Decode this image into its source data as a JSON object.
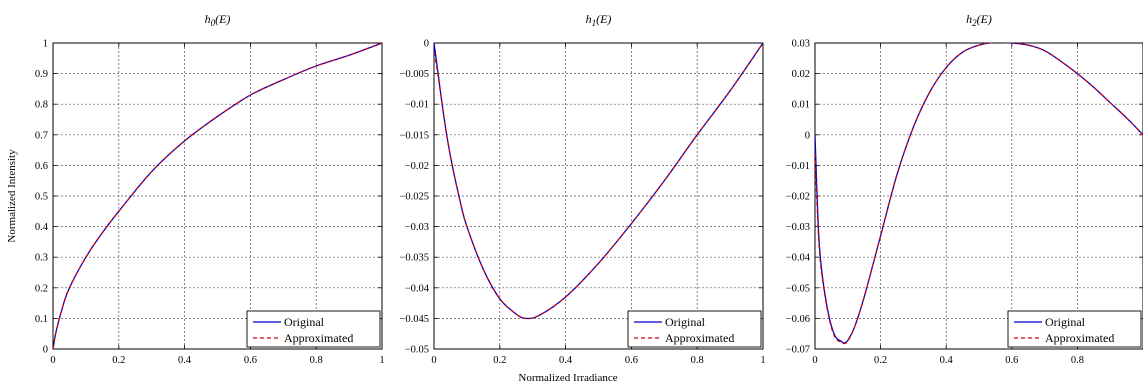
{
  "figure": {
    "ylabel": "Normalized Intensity",
    "xlabel": "Normalized Irradiance"
  },
  "legend": {
    "original": "Original",
    "approximated": "Approximated"
  },
  "colors": {
    "original": "#0000cc",
    "approximated": "#d40000",
    "grid": "#555555"
  },
  "chart_data": [
    {
      "type": "line",
      "title_main": "h",
      "title_sub": "0",
      "title_rest": "(E)",
      "xlim": [
        0,
        1
      ],
      "ylim": [
        0,
        1
      ],
      "xticks": [
        0,
        0.2,
        0.4,
        0.6,
        0.8,
        1
      ],
      "xtick_labels": [
        "0",
        "0.2",
        "0.4",
        "0.6",
        "0.8",
        "1"
      ],
      "yticks": [
        0,
        0.1,
        0.2,
        0.3,
        0.4,
        0.5,
        0.6,
        0.7,
        0.8,
        0.9,
        1
      ],
      "ytick_labels": [
        "0",
        "0.1",
        "0.2",
        "0.3",
        "0.4",
        "0.5",
        "0.6",
        "0.7",
        "0.8",
        "0.9",
        "1"
      ],
      "grid": true,
      "legend_position": "bottom-right",
      "series": [
        {
          "name": "Original",
          "style": "solid",
          "x": [
            0,
            0.01,
            0.03,
            0.05,
            0.1,
            0.15,
            0.2,
            0.3,
            0.4,
            0.5,
            0.6,
            0.7,
            0.8,
            0.9,
            1
          ],
          "y": [
            0,
            0.06,
            0.14,
            0.2,
            0.3,
            0.38,
            0.45,
            0.58,
            0.68,
            0.76,
            0.83,
            0.88,
            0.925,
            0.96,
            1
          ]
        },
        {
          "name": "Approximated",
          "style": "dashed",
          "x": [
            0,
            0.01,
            0.03,
            0.05,
            0.1,
            0.15,
            0.2,
            0.3,
            0.4,
            0.5,
            0.6,
            0.7,
            0.8,
            0.9,
            1
          ],
          "y": [
            0,
            0.06,
            0.14,
            0.2,
            0.3,
            0.38,
            0.45,
            0.58,
            0.68,
            0.76,
            0.83,
            0.88,
            0.925,
            0.96,
            1
          ]
        }
      ]
    },
    {
      "type": "line",
      "title_main": "h",
      "title_sub": "1",
      "title_rest": "(E)",
      "xlim": [
        0,
        1
      ],
      "ylim": [
        -0.05,
        0
      ],
      "xticks": [
        0,
        0.2,
        0.4,
        0.6,
        0.8,
        1
      ],
      "xtick_labels": [
        "0",
        "0.2",
        "0.4",
        "0.6",
        "0.8",
        "1"
      ],
      "yticks": [
        -0.05,
        -0.045,
        -0.04,
        -0.035,
        -0.03,
        -0.025,
        -0.02,
        -0.015,
        -0.01,
        -0.005,
        0
      ],
      "ytick_labels": [
        "−0.05",
        "−0.045",
        "−0.04",
        "−0.035",
        "−0.03",
        "−0.025",
        "−0.02",
        "−0.015",
        "−0.01",
        "−0.005",
        "0"
      ],
      "grid": true,
      "legend_position": "bottom-right",
      "series": [
        {
          "name": "Original",
          "style": "solid",
          "x": [
            0,
            0.01,
            0.03,
            0.05,
            0.08,
            0.1,
            0.15,
            0.2,
            0.25,
            0.28,
            0.32,
            0.4,
            0.5,
            0.6,
            0.7,
            0.8,
            0.9,
            1
          ],
          "y": [
            0,
            -0.004,
            -0.012,
            -0.0185,
            -0.026,
            -0.03,
            -0.037,
            -0.0418,
            -0.0443,
            -0.045,
            -0.0445,
            -0.0415,
            -0.036,
            -0.0295,
            -0.0225,
            -0.015,
            -0.0078,
            0
          ]
        },
        {
          "name": "Approximated",
          "style": "dashed",
          "x": [
            0,
            0.01,
            0.03,
            0.05,
            0.08,
            0.1,
            0.15,
            0.2,
            0.25,
            0.28,
            0.32,
            0.4,
            0.5,
            0.6,
            0.7,
            0.8,
            0.9,
            1
          ],
          "y": [
            -0.0015,
            -0.0045,
            -0.012,
            -0.0185,
            -0.026,
            -0.03,
            -0.037,
            -0.0418,
            -0.0443,
            -0.045,
            -0.0445,
            -0.0415,
            -0.036,
            -0.0295,
            -0.0225,
            -0.015,
            -0.0078,
            0
          ]
        }
      ]
    },
    {
      "type": "line",
      "title_main": "h",
      "title_sub": "2",
      "title_rest": "(E)",
      "xlim": [
        0,
        1
      ],
      "ylim": [
        -0.07,
        0.03
      ],
      "xticks": [
        0,
        0.2,
        0.4,
        0.6,
        0.8
      ],
      "xtick_labels": [
        "0",
        "0.2",
        "0.4",
        "0.6",
        "0.8"
      ],
      "yticks": [
        -0.07,
        -0.06,
        -0.05,
        -0.04,
        -0.03,
        -0.02,
        -0.01,
        0,
        0.01,
        0.02,
        0.03
      ],
      "ytick_labels": [
        "−0.07",
        "−0.06",
        "−0.05",
        "−0.04",
        "−0.03",
        "−0.02",
        "−0.01",
        "0",
        "0.01",
        "0.02",
        "0.03"
      ],
      "grid": true,
      "legend_position": "bottom-right",
      "series": [
        {
          "name": "Original",
          "style": "solid",
          "x": [
            0,
            0.01,
            0.02,
            0.04,
            0.06,
            0.08,
            0.09,
            0.1,
            0.12,
            0.15,
            0.2,
            0.25,
            0.3,
            0.35,
            0.4,
            0.45,
            0.5,
            0.55,
            0.6,
            0.65,
            0.7,
            0.75,
            0.8,
            0.85,
            0.9,
            0.95,
            1
          ],
          "y": [
            0,
            -0.03,
            -0.044,
            -0.058,
            -0.0655,
            -0.0675,
            -0.068,
            -0.0672,
            -0.063,
            -0.053,
            -0.033,
            -0.013,
            0.0025,
            0.014,
            0.022,
            0.027,
            0.0293,
            0.0302,
            0.03,
            0.0293,
            0.0275,
            0.024,
            0.02,
            0.0155,
            0.0105,
            0.0055,
            0
          ]
        },
        {
          "name": "Approximated",
          "style": "dashed",
          "x": [
            0,
            0.01,
            0.02,
            0.04,
            0.06,
            0.08,
            0.09,
            0.1,
            0.12,
            0.15,
            0.2,
            0.25,
            0.3,
            0.35,
            0.4,
            0.45,
            0.5,
            0.55,
            0.6,
            0.65,
            0.7,
            0.75,
            0.8,
            0.85,
            0.9,
            0.95,
            1
          ],
          "y": [
            -0.006,
            -0.032,
            -0.045,
            -0.0585,
            -0.066,
            -0.0678,
            -0.0682,
            -0.0674,
            -0.063,
            -0.053,
            -0.033,
            -0.013,
            0.0025,
            0.014,
            0.022,
            0.027,
            0.0293,
            0.0302,
            0.03,
            0.0293,
            0.0275,
            0.024,
            0.02,
            0.0155,
            0.0105,
            0.0055,
            0
          ]
        }
      ]
    }
  ]
}
